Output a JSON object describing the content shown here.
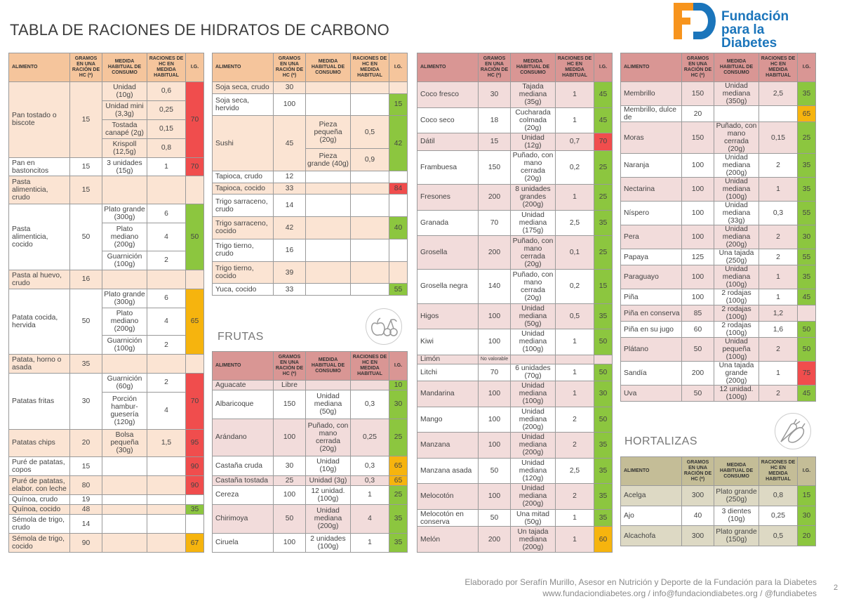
{
  "title": "TABLA DE RACIONES DE HIDRATOS DE CARBONO",
  "logo": {
    "line1": "Fundación",
    "line2": "para la Diabetes",
    "orange": "#f7941d",
    "blue": "#1b75bb"
  },
  "sections": {
    "frutas": "FRUTAS",
    "hortalizas": "HORTALIZAS"
  },
  "headers": [
    "ALIMENTO",
    "GRAMOS EN UNA RACIÓN DE HC (*)",
    "MEDIDA HABITUAL DE CONSUMO",
    "RACIONES DE HC EN MEDIDA HABITUAL",
    "I.G."
  ],
  "ig_colors": {
    "green": "#8cc63f",
    "red": "#f04d4d",
    "orange": "#f6b40e"
  },
  "themes": {
    "cereales": {
      "header": "#f5c59c",
      "alt": "#fbe4d3"
    },
    "frutas": {
      "header": "#d99694",
      "alt": "#f2dcdb"
    },
    "hortalizas": {
      "header": "#c4bd97",
      "alt": "#ddd9c4"
    }
  },
  "tables": [
    {
      "theme": "cereales",
      "rows": [
        {
          "name": "Pan tostado o biscote",
          "g": "15",
          "m": [
            [
              "Unidad (10g)",
              "0,6"
            ],
            [
              "Unidad mini (3,3g)",
              "0,25"
            ],
            [
              "Tostada canapé (2g)",
              "0,15"
            ],
            [
              "Krispoll (12,5g)",
              "0,8"
            ]
          ],
          "ig": "70",
          "lvl": "red"
        },
        {
          "name": "Pan en bastoncitos",
          "g": "15",
          "m": [
            [
              "3 unidades (15g)",
              "1"
            ]
          ],
          "ig": "70",
          "lvl": "red"
        },
        {
          "name": "Pasta alimenticia, crudo",
          "g": "15",
          "m": [],
          "ig": "",
          "lvl": ""
        },
        {
          "name": "Pasta alimenticia, cocido",
          "g": "50",
          "m": [
            [
              "Plato grande (300g)",
              "6"
            ],
            [
              "Plato mediano (200g)",
              "4"
            ],
            [
              "Guarnición (100g)",
              "2"
            ]
          ],
          "ig": "50",
          "lvl": "green"
        },
        {
          "name": "Pasta al huevo, crudo",
          "g": "16",
          "m": [],
          "ig": "",
          "lvl": ""
        },
        {
          "name": "Patata cocida, hervida",
          "g": "50",
          "m": [
            [
              "Plato grande (300g)",
              "6"
            ],
            [
              "Plato mediano (200g)",
              "4"
            ],
            [
              "Guarnición (100g)",
              "2"
            ]
          ],
          "ig": "65",
          "lvl": "orange"
        },
        {
          "name": "Patata, horno o asada",
          "g": "35",
          "m": [],
          "ig": "",
          "lvl": ""
        },
        {
          "name": "Patatas fritas",
          "g": "30",
          "m": [
            [
              "Guarnición (60g)",
              "2"
            ],
            [
              "Porción hambur- guesería (120g)",
              "4"
            ]
          ],
          "ig": "70",
          "lvl": "red"
        },
        {
          "name": "Patatas chips",
          "g": "20",
          "m": [
            [
              "Bolsa pequeña (30g)",
              "1,5"
            ]
          ],
          "ig": "95",
          "lvl": "red"
        },
        {
          "name": "Puré de patatas, copos",
          "g": "15",
          "m": [],
          "ig": "90",
          "lvl": "red"
        },
        {
          "name": "Puré de patatas, elabor. con leche",
          "g": "80",
          "m": [],
          "ig": "90",
          "lvl": "red"
        },
        {
          "name": "Quínoa, crudo",
          "g": "19",
          "m": [],
          "ig": "",
          "lvl": ""
        },
        {
          "name": "Quínoa, cocido",
          "g": "48",
          "m": [],
          "ig": "35",
          "lvl": "green"
        },
        {
          "name": "Sémola de trigo, crudo",
          "g": "14",
          "m": [],
          "ig": "",
          "lvl": ""
        },
        {
          "name": "Sémola de trigo, cocido",
          "g": "90",
          "m": [],
          "ig": "67",
          "lvl": "orange"
        }
      ]
    },
    {
      "theme": "cereales",
      "rows": [
        {
          "name": "Soja seca, crudo",
          "g": "30",
          "m": [],
          "ig": "",
          "lvl": ""
        },
        {
          "name": "Soja seca, hervido",
          "g": "100",
          "m": [],
          "ig": "15",
          "lvl": "green"
        },
        {
          "name": "Sushi",
          "g": "45",
          "m": [
            [
              "Pieza pequeña (20g)",
              "0,5"
            ],
            [
              "Pieza grande (40g)",
              "0,9"
            ]
          ],
          "ig": "42",
          "lvl": "green"
        },
        {
          "name": "Tapioca, crudo",
          "g": "12",
          "m": [],
          "ig": "",
          "lvl": ""
        },
        {
          "name": "Tapioca, cocido",
          "g": "33",
          "m": [],
          "ig": "84",
          "lvl": "red"
        },
        {
          "name": "Trigo sarraceno, crudo",
          "g": "14",
          "m": [],
          "ig": "",
          "lvl": ""
        },
        {
          "name": "Trigo sarraceno, cocido",
          "g": "42",
          "m": [],
          "ig": "40",
          "lvl": "green"
        },
        {
          "name": "Trigo tierno, crudo",
          "g": "16",
          "m": [],
          "ig": "",
          "lvl": ""
        },
        {
          "name": "Trigo tierno, cocido",
          "g": "39",
          "m": [],
          "ig": "",
          "lvl": ""
        },
        {
          "name": "Yuca, cocido",
          "g": "33",
          "m": [],
          "ig": "55",
          "lvl": "green"
        }
      ]
    },
    {
      "theme": "frutas",
      "rows": [
        {
          "name": "Aguacate",
          "g": "Libre",
          "m": [],
          "ig": "10",
          "lvl": "green"
        },
        {
          "name": "Albaricoque",
          "g": "150",
          "m": [
            [
              "Unidad mediana (50g)",
              "0,3"
            ]
          ],
          "ig": "30",
          "lvl": "green"
        },
        {
          "name": "Arándano",
          "g": "100",
          "m": [
            [
              "Puñado, con mano cerrada (20g)",
              "0,25"
            ]
          ],
          "ig": "25",
          "lvl": "green"
        },
        {
          "name": "Castaña cruda",
          "g": "30",
          "m": [
            [
              "Unidad (10g)",
              "0,3"
            ]
          ],
          "ig": "65",
          "lvl": "orange"
        },
        {
          "name": "Castaña tostada",
          "g": "25",
          "m": [
            [
              "Unidad (3g)",
              "0,3"
            ]
          ],
          "ig": "65",
          "lvl": "orange"
        },
        {
          "name": "Cereza",
          "g": "100",
          "m": [
            [
              "12 unidad. (100g)",
              "1"
            ]
          ],
          "ig": "25",
          "lvl": "green"
        },
        {
          "name": "Chirimoya",
          "g": "50",
          "m": [
            [
              "Unidad mediana (200g)",
              "4"
            ]
          ],
          "ig": "35",
          "lvl": "green"
        },
        {
          "name": "Ciruela",
          "g": "100",
          "m": [
            [
              "2 unidades (100g)",
              "1"
            ]
          ],
          "ig": "35",
          "lvl": "green"
        }
      ]
    },
    {
      "theme": "frutas",
      "rows": [
        {
          "name": "Coco fresco",
          "g": "30",
          "m": [
            [
              "Tajada mediana (35g)",
              "1"
            ]
          ],
          "ig": "45",
          "lvl": "green"
        },
        {
          "name": "Coco seco",
          "g": "18",
          "m": [
            [
              "Cucharada colmada (20g)",
              "1"
            ]
          ],
          "ig": "45",
          "lvl": "green"
        },
        {
          "name": "Dátil",
          "g": "15",
          "m": [
            [
              "Unidad (12g)",
              "0,7"
            ]
          ],
          "ig": "70",
          "lvl": "red"
        },
        {
          "name": "Frambuesa",
          "g": "150",
          "m": [
            [
              "Puñado, con mano cerrada (20g)",
              "0,2"
            ]
          ],
          "ig": "25",
          "lvl": "green"
        },
        {
          "name": "Fresones",
          "g": "200",
          "m": [
            [
              "8 unidades grandes (200g)",
              "1"
            ]
          ],
          "ig": "25",
          "lvl": "green"
        },
        {
          "name": "Granada",
          "g": "70",
          "m": [
            [
              "Unidad mediana (175g)",
              "2,5"
            ]
          ],
          "ig": "35",
          "lvl": "green"
        },
        {
          "name": "Grosella",
          "g": "200",
          "m": [
            [
              "Puñado, con mano cerrada (20g)",
              "0,1"
            ]
          ],
          "ig": "25",
          "lvl": "green"
        },
        {
          "name": "Grosella negra",
          "g": "140",
          "m": [
            [
              "Puñado, con mano cerrada (20g)",
              "0,2"
            ]
          ],
          "ig": "15",
          "lvl": "green"
        },
        {
          "name": "Higos",
          "g": "100",
          "m": [
            [
              "Unidad mediana (50g)",
              "0,5"
            ]
          ],
          "ig": "35",
          "lvl": "green"
        },
        {
          "name": "Kiwi",
          "g": "100",
          "m": [
            [
              "Unidad mediana (100g)",
              "1"
            ]
          ],
          "ig": "50",
          "lvl": "green"
        },
        {
          "name": "Limón",
          "g": "No valorable",
          "m": [],
          "ig": "",
          "lvl": ""
        },
        {
          "name": "Litchi",
          "g": "70",
          "m": [
            [
              "6 unidades (70g)",
              "1"
            ]
          ],
          "ig": "50",
          "lvl": "green"
        },
        {
          "name": "Mandarina",
          "g": "100",
          "m": [
            [
              "Unidad mediana (100g)",
              "1"
            ]
          ],
          "ig": "30",
          "lvl": "green"
        },
        {
          "name": "Mango",
          "g": "100",
          "m": [
            [
              "Unidad mediana (200g)",
              "2"
            ]
          ],
          "ig": "50",
          "lvl": "green"
        },
        {
          "name": "Manzana",
          "g": "100",
          "m": [
            [
              "Unidad mediana (200g)",
              "2"
            ]
          ],
          "ig": "35",
          "lvl": "green"
        },
        {
          "name": "Manzana asada",
          "g": "50",
          "m": [
            [
              "Unidad mediana (120g)",
              "2,5"
            ]
          ],
          "ig": "35",
          "lvl": "green"
        },
        {
          "name": "Melocotón",
          "g": "100",
          "m": [
            [
              "Unidad mediana (200g)",
              "2"
            ]
          ],
          "ig": "35",
          "lvl": "green"
        },
        {
          "name": "Melocotón en conserva",
          "g": "50",
          "m": [
            [
              "Una mitad (50g)",
              "1"
            ]
          ],
          "ig": "35",
          "lvl": "green"
        },
        {
          "name": "Melón",
          "g": "200",
          "m": [
            [
              "Un tajada mediana (200g)",
              "1"
            ]
          ],
          "ig": "60",
          "lvl": "orange"
        }
      ]
    },
    {
      "theme": "frutas",
      "rows": [
        {
          "name": "Membrillo",
          "g": "150",
          "m": [
            [
              "Unidad mediana (350g)",
              "2,5"
            ]
          ],
          "ig": "35",
          "lvl": "green"
        },
        {
          "name": "Membrillo, dulce de",
          "g": "20",
          "m": [],
          "ig": "65",
          "lvl": "orange"
        },
        {
          "name": "Moras",
          "g": "150",
          "m": [
            [
              "Puñado, con mano cerrada (20g)",
              "0,15"
            ]
          ],
          "ig": "25",
          "lvl": "green"
        },
        {
          "name": "Naranja",
          "g": "100",
          "m": [
            [
              "Unidad mediana (200g)",
              "2"
            ]
          ],
          "ig": "35",
          "lvl": "green"
        },
        {
          "name": "Nectarina",
          "g": "100",
          "m": [
            [
              "Unidad mediana (100g)",
              "1"
            ]
          ],
          "ig": "35",
          "lvl": "green"
        },
        {
          "name": "Níspero",
          "g": "100",
          "m": [
            [
              "Unidad mediana (33g)",
              "0,3"
            ]
          ],
          "ig": "55",
          "lvl": "green"
        },
        {
          "name": "Pera",
          "g": "100",
          "m": [
            [
              "Unidad mediana (200g)",
              "2"
            ]
          ],
          "ig": "30",
          "lvl": "green"
        },
        {
          "name": "Papaya",
          "g": "125",
          "m": [
            [
              "Una tajada (250g)",
              "2"
            ]
          ],
          "ig": "55",
          "lvl": "green"
        },
        {
          "name": "Paraguayo",
          "g": "100",
          "m": [
            [
              "Unidad mediana (100g)",
              "1"
            ]
          ],
          "ig": "35",
          "lvl": "green"
        },
        {
          "name": "Piña",
          "g": "100",
          "m": [
            [
              "2 rodajas (100g)",
              "1"
            ]
          ],
          "ig": "45",
          "lvl": "green"
        },
        {
          "name": "Piña en conserva",
          "g": "85",
          "m": [
            [
              "2 rodajas (100g)",
              "1,2"
            ]
          ],
          "ig": "",
          "lvl": ""
        },
        {
          "name": "Piña en su jugo",
          "g": "60",
          "m": [
            [
              "2 rodajas (100g)",
              "1,6"
            ]
          ],
          "ig": "50",
          "lvl": "green"
        },
        {
          "name": "Plátano",
          "g": "50",
          "m": [
            [
              "Unidad pequeña (100g)",
              "2"
            ]
          ],
          "ig": "50",
          "lvl": "green"
        },
        {
          "name": "Sandía",
          "g": "200",
          "m": [
            [
              "Una tajada grande (200g)",
              "1"
            ]
          ],
          "ig": "75",
          "lvl": "red"
        },
        {
          "name": "Uva",
          "g": "50",
          "m": [
            [
              "12 unidad. (100g)",
              "2"
            ]
          ],
          "ig": "45",
          "lvl": "green"
        }
      ]
    },
    {
      "theme": "hortalizas",
      "rows": [
        {
          "name": "Acelga",
          "g": "300",
          "m": [
            [
              "Plato grande (250g)",
              "0,8"
            ]
          ],
          "ig": "15",
          "lvl": "green"
        },
        {
          "name": "Ajo",
          "g": "40",
          "m": [
            [
              "3 dientes (10g)",
              "0,25"
            ]
          ],
          "ig": "30",
          "lvl": "green"
        },
        {
          "name": "Alcachofa",
          "g": "300",
          "m": [
            [
              "Plato grande (150g)",
              "0,5"
            ]
          ],
          "ig": "20",
          "lvl": "green"
        }
      ]
    }
  ],
  "footer": {
    "line1": "Elaborado por Serafín Murillo, Asesor en Nutrición y Deporte de la Fundación para la Diabetes",
    "line2": "www.fundaciondiabetes.org / info@fundaciondiabetes.org / @fundiabetes"
  },
  "page_number": "2"
}
